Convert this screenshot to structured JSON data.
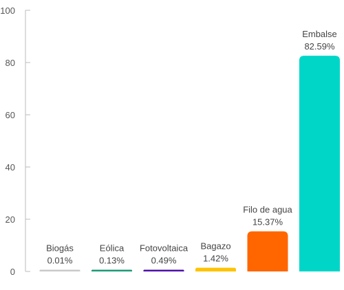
{
  "chart_data": {
    "type": "bar",
    "categories": [
      "Biogás",
      "Eólica",
      "Fotovoltaica",
      "Bagazo",
      "Filo de agua",
      "Embalse"
    ],
    "values": [
      0.01,
      0.13,
      0.49,
      1.42,
      15.37,
      82.59
    ],
    "value_labels": [
      "0.01%",
      "0.13%",
      "0.49%",
      "1.42%",
      "15.37%",
      "82.59%"
    ],
    "colors": [
      "#c9c9c9",
      "#1a9a72",
      "#4b0fa8",
      "#ffc300",
      "#ff6600",
      "#00d6c8"
    ],
    "title": "",
    "xlabel": "",
    "ylabel": "",
    "ylim": [
      0,
      100
    ],
    "yticks": [
      0,
      20,
      40,
      60,
      80,
      100
    ],
    "grid": false,
    "legend": "none"
  }
}
